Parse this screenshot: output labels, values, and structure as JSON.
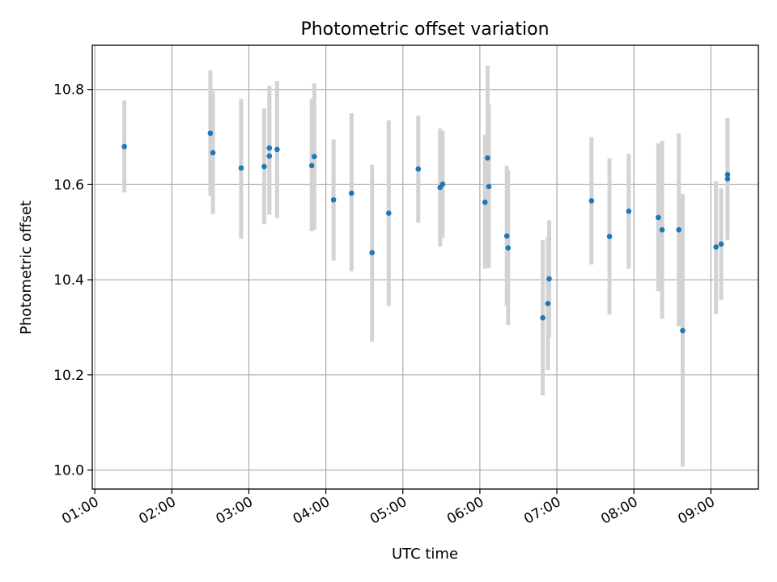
{
  "chart_data": {
    "type": "scatter",
    "title": "Photometric offset variation",
    "xlabel": "UTC time",
    "ylabel": "Photometric offset",
    "xlim": [
      "00:58",
      "09:37"
    ],
    "ylim": [
      9.96,
      10.893
    ],
    "x_ticks": [
      "01:00",
      "02:00",
      "03:00",
      "04:00",
      "05:00",
      "06:00",
      "07:00",
      "08:00",
      "09:00"
    ],
    "y_ticks": [
      10.0,
      10.2,
      10.4,
      10.6,
      10.8
    ],
    "y_tick_labels": [
      "10.0",
      "10.2",
      "10.4",
      "10.6",
      "10.8"
    ],
    "grid": true,
    "point_color": "#1f77b4",
    "errorbar_color": "#d3d3d3",
    "series": [
      {
        "points": [
          {
            "x": "01:23",
            "y": 10.68,
            "ylo": 10.584,
            "yhi": 10.777
          },
          {
            "x": "02:30",
            "y": 10.708,
            "ylo": 10.577,
            "yhi": 10.84
          },
          {
            "x": "02:32",
            "y": 10.667,
            "ylo": 10.538,
            "yhi": 10.797
          },
          {
            "x": "02:54",
            "y": 10.635,
            "ylo": 10.486,
            "yhi": 10.78
          },
          {
            "x": "03:12",
            "y": 10.638,
            "ylo": 10.517,
            "yhi": 10.76
          },
          {
            "x": "03:16",
            "y": 10.677,
            "ylo": 10.547,
            "yhi": 10.808
          },
          {
            "x": "03:16",
            "y": 10.66,
            "ylo": 10.537,
            "yhi": 10.79
          },
          {
            "x": "03:22",
            "y": 10.674,
            "ylo": 10.53,
            "yhi": 10.818
          },
          {
            "x": "03:49",
            "y": 10.64,
            "ylo": 10.502,
            "yhi": 10.78
          },
          {
            "x": "03:51",
            "y": 10.659,
            "ylo": 10.505,
            "yhi": 10.813
          },
          {
            "x": "04:06",
            "y": 10.568,
            "ylo": 10.44,
            "yhi": 10.695
          },
          {
            "x": "04:20",
            "y": 10.582,
            "ylo": 10.418,
            "yhi": 10.75
          },
          {
            "x": "04:36",
            "y": 10.457,
            "ylo": 10.27,
            "yhi": 10.642
          },
          {
            "x": "04:49",
            "y": 10.54,
            "ylo": 10.345,
            "yhi": 10.735
          },
          {
            "x": "05:12",
            "y": 10.633,
            "ylo": 10.52,
            "yhi": 10.745
          },
          {
            "x": "05:29",
            "y": 10.594,
            "ylo": 10.47,
            "yhi": 10.718
          },
          {
            "x": "05:31",
            "y": 10.601,
            "ylo": 10.488,
            "yhi": 10.713
          },
          {
            "x": "06:04",
            "y": 10.563,
            "ylo": 10.423,
            "yhi": 10.705
          },
          {
            "x": "06:06",
            "y": 10.656,
            "ylo": 10.46,
            "yhi": 10.85
          },
          {
            "x": "06:07",
            "y": 10.596,
            "ylo": 10.425,
            "yhi": 10.768
          },
          {
            "x": "06:21",
            "y": 10.492,
            "ylo": 10.345,
            "yhi": 10.64
          },
          {
            "x": "06:22",
            "y": 10.467,
            "ylo": 10.305,
            "yhi": 10.63
          },
          {
            "x": "06:49",
            "y": 10.32,
            "ylo": 10.157,
            "yhi": 10.483
          },
          {
            "x": "06:53",
            "y": 10.35,
            "ylo": 10.21,
            "yhi": 10.49
          },
          {
            "x": "06:54",
            "y": 10.402,
            "ylo": 10.278,
            "yhi": 10.525
          },
          {
            "x": "07:27",
            "y": 10.566,
            "ylo": 10.432,
            "yhi": 10.7
          },
          {
            "x": "07:41",
            "y": 10.491,
            "ylo": 10.327,
            "yhi": 10.655
          },
          {
            "x": "07:56",
            "y": 10.544,
            "ylo": 10.423,
            "yhi": 10.665
          },
          {
            "x": "08:19",
            "y": 10.531,
            "ylo": 10.376,
            "yhi": 10.687
          },
          {
            "x": "08:22",
            "y": 10.505,
            "ylo": 10.318,
            "yhi": 10.692
          },
          {
            "x": "08:35",
            "y": 10.505,
            "ylo": 10.302,
            "yhi": 10.708
          },
          {
            "x": "08:38",
            "y": 10.293,
            "ylo": 10.007,
            "yhi": 10.58
          },
          {
            "x": "09:04",
            "y": 10.469,
            "ylo": 10.328,
            "yhi": 10.607
          },
          {
            "x": "09:08",
            "y": 10.475,
            "ylo": 10.358,
            "yhi": 10.592
          },
          {
            "x": "09:13",
            "y": 10.612,
            "ylo": 10.483,
            "yhi": 10.74
          },
          {
            "x": "09:13",
            "y": 10.621,
            "ylo": 10.505,
            "yhi": 10.738
          }
        ]
      }
    ]
  }
}
